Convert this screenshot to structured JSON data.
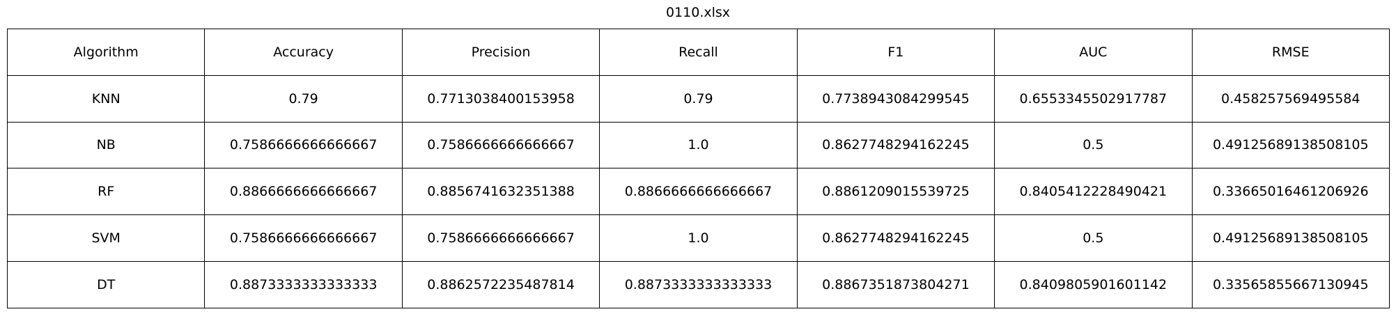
{
  "chart_data": {
    "type": "table",
    "title": "0110.xlsx",
    "columns": [
      "Algorithm",
      "Accuracy",
      "Precision",
      "Recall",
      "F1",
      "AUC",
      "RMSE"
    ],
    "rows": [
      [
        "KNN",
        "0.79",
        "0.7713038400153958",
        "0.79",
        "0.7738943084299545",
        "0.6553345502917787",
        "0.458257569495584"
      ],
      [
        "NB",
        "0.7586666666666667",
        "0.7586666666666667",
        "1.0",
        "0.8627748294162245",
        "0.5",
        "0.49125689138508105"
      ],
      [
        "RF",
        "0.8866666666666667",
        "0.8856741632351388",
        "0.8866666666666667",
        "0.8861209015539725",
        "0.8405412228490421",
        "0.33665016461206926"
      ],
      [
        "SVM",
        "0.7586666666666667",
        "0.7586666666666667",
        "1.0",
        "0.8627748294162245",
        "0.5",
        "0.49125689138508105"
      ],
      [
        "DT",
        "0.8873333333333333",
        "0.8862572235487814",
        "0.8873333333333333",
        "0.8867351873804271",
        "0.8409805901601142",
        "0.33565855667130945"
      ]
    ],
    "grid": true
  }
}
